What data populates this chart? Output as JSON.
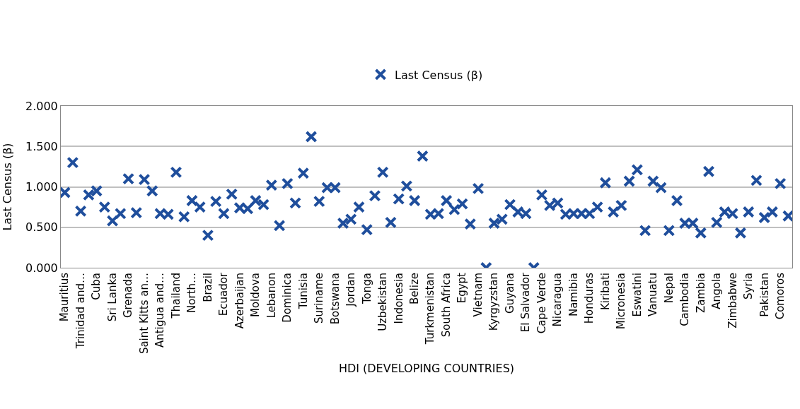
{
  "chart_data": {
    "type": "scatter",
    "xlabel": "HDI (DEVELOPING COUNTRIES)",
    "ylabel": "Last Census (β)",
    "categories": [
      "Mauritius",
      null,
      "Trinidad and…",
      null,
      "Cuba",
      null,
      "Sri Lanka",
      null,
      "Grenada",
      null,
      "Saint Kitts an…",
      null,
      "Antigua and…",
      null,
      "Thailand",
      null,
      "North…",
      null,
      "Brazil",
      null,
      "Ecuador",
      null,
      "Azerbaijan",
      null,
      "Moldova",
      null,
      "Lebanon",
      null,
      "Dominica",
      null,
      "Tunisia",
      null,
      "Suriname",
      null,
      "Botswana",
      null,
      "Jordan",
      null,
      "Tonga",
      null,
      "Uzbekistan",
      null,
      "Indonesia",
      null,
      "Belize",
      null,
      "Turkmenistan",
      null,
      "South Africa",
      null,
      "Egypt",
      null,
      "Vietnam",
      null,
      "Kyrgyzstan",
      null,
      "Guyana",
      null,
      "El Salvador",
      null,
      "Cape Verde",
      null,
      "Nicaragua",
      null,
      "Namibia",
      null,
      "Honduras",
      null,
      "Kiribati",
      null,
      "Micronesia",
      null,
      "Eswatini",
      null,
      "Vanuatu",
      null,
      "Nepal",
      null,
      "Cambodia",
      null,
      "Zambia",
      null,
      "Angola",
      null,
      "Zimbabwe",
      null,
      "Syria",
      null,
      "Pakistan",
      null,
      "Comoros",
      null
    ],
    "series": [
      {
        "name": "Last Census (β)",
        "color": "#1f4e9c",
        "values": [
          0.93,
          1.3,
          0.7,
          0.9,
          0.95,
          0.75,
          0.58,
          0.67,
          1.1,
          0.68,
          1.09,
          0.95,
          0.67,
          0.66,
          1.18,
          0.63,
          0.83,
          0.75,
          0.4,
          0.82,
          0.67,
          0.91,
          0.74,
          0.73,
          0.83,
          0.78,
          1.02,
          0.52,
          1.04,
          0.8,
          1.17,
          1.62,
          0.82,
          0.99,
          0.99,
          0.55,
          0.6,
          0.75,
          0.47,
          0.89,
          1.18,
          0.56,
          0.85,
          1.01,
          0.83,
          1.38,
          0.66,
          0.67,
          0.83,
          0.72,
          0.79,
          0.54,
          0.98,
          0.0,
          0.55,
          0.6,
          0.78,
          0.69,
          0.67,
          0.0,
          0.9,
          0.77,
          0.8,
          0.66,
          0.67,
          0.67,
          0.67,
          0.75,
          1.05,
          0.69,
          0.77,
          1.07,
          1.21,
          0.46,
          1.07,
          0.99,
          0.46,
          0.83,
          0.55,
          0.55,
          0.43,
          1.19,
          0.56,
          0.69,
          0.67,
          0.43,
          0.69,
          1.08,
          0.62,
          0.69,
          1.04,
          0.64
        ]
      }
    ],
    "ylim": [
      0,
      2
    ],
    "yticks": [
      {
        "value": 0,
        "label": "0.000"
      },
      {
        "value": 0.5,
        "label": "0.500"
      },
      {
        "value": 1,
        "label": "1.000"
      },
      {
        "value": 1.5,
        "label": "1.500"
      },
      {
        "value": 2,
        "label": "2.000"
      }
    ],
    "grid": "y",
    "legend": "top",
    "marker": "cross"
  }
}
